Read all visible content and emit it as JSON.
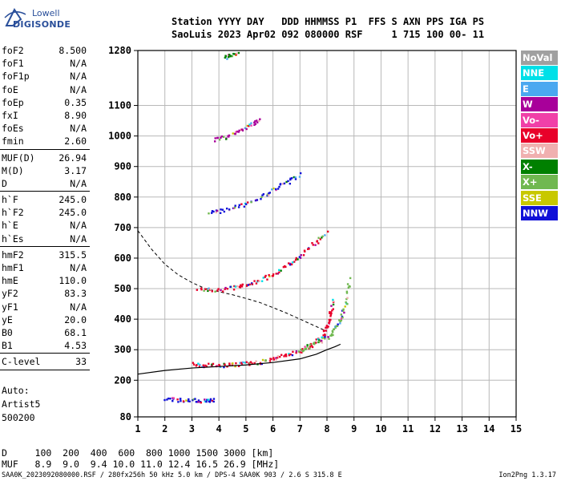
{
  "logo": {
    "line1": "Lowell",
    "line2": "DIGISONDE"
  },
  "header": {
    "line1": "Station YYYY DAY   DDD HHMMSS P1  FFS S AXN PPS IGA PS",
    "line2": "SaoLuis 2023 Apr02 092 080000 RSF     1 715 100 00- 11"
  },
  "params": [
    {
      "label": "foF2",
      "value": "8.500"
    },
    {
      "label": "foF1",
      "value": "N/A"
    },
    {
      "label": "foF1p",
      "value": "N/A"
    },
    {
      "label": "foE",
      "value": "N/A"
    },
    {
      "label": "foEp",
      "value": "0.35"
    },
    {
      "label": "fxI",
      "value": "8.90"
    },
    {
      "label": "foEs",
      "value": "N/A"
    },
    {
      "label": "fmin",
      "value": "2.60"
    },
    {
      "sep": true
    },
    {
      "label": "MUF(D)",
      "value": "26.94"
    },
    {
      "label": "M(D)",
      "value": "3.17"
    },
    {
      "label": "D",
      "value": "N/A"
    },
    {
      "sep": true
    },
    {
      "label": "h`F",
      "value": "245.0"
    },
    {
      "label": "h`F2",
      "value": "245.0"
    },
    {
      "label": "h`E",
      "value": "N/A"
    },
    {
      "label": "h`Es",
      "value": "N/A"
    },
    {
      "sep": true
    },
    {
      "label": "hmF2",
      "value": "315.5"
    },
    {
      "label": "hmF1",
      "value": "N/A"
    },
    {
      "label": "hmE",
      "value": "110.0"
    },
    {
      "label": "yF2",
      "value": "83.3"
    },
    {
      "label": "yF1",
      "value": "N/A"
    },
    {
      "label": "yE",
      "value": "20.0"
    },
    {
      "label": "B0",
      "value": "68.1"
    },
    {
      "label": "B1",
      "value": "4.53"
    },
    {
      "sep": true
    },
    {
      "label": "C-level",
      "value": "33"
    },
    {
      "sep": true
    }
  ],
  "auto": {
    "line1": "Auto:",
    "line2": "Artist5",
    "line3": "500200"
  },
  "muf_table": {
    "line1": "D     100  200  400  600  800 1000 1500 3000 [km]",
    "line2": "MUF   8.9  9.0  9.4 10.0 11.0 12.4 16.5 26.9 [MHz]"
  },
  "footer": {
    "left": "SAA0K_2023092080000.RSF / 280fx256h 50 kHz 5.0 km / DPS-4 SAA0K 903 / 2.6 S 315.8 E",
    "right": "Ion2Png 1.3.17"
  },
  "legend": [
    {
      "label": "NoVal",
      "color": "#a0a0a0"
    },
    {
      "label": "NNE",
      "color": "#00e0e8"
    },
    {
      "label": "E",
      "color": "#4aa8f0"
    },
    {
      "label": "W",
      "color": "#a8009a"
    },
    {
      "label": "Vo-",
      "color": "#f040a8"
    },
    {
      "label": "Vo+",
      "color": "#e8002a"
    },
    {
      "label": "SSW",
      "color": "#f0b0b0"
    },
    {
      "label": "X-",
      "color": "#008000"
    },
    {
      "label": "X+",
      "color": "#70b850"
    },
    {
      "label": "SSE",
      "color": "#c8c800"
    },
    {
      "label": "NNW",
      "color": "#1010d8"
    }
  ],
  "chart_data": {
    "type": "scatter",
    "xlim": [
      1,
      15
    ],
    "ylim": [
      80,
      1280
    ],
    "x_ticks": [
      1,
      2,
      3,
      4,
      5,
      6,
      7,
      8,
      9,
      10,
      11,
      12,
      13,
      14,
      15
    ],
    "y_ticks": [
      80,
      200,
      300,
      400,
      500,
      600,
      700,
      800,
      900,
      1000,
      1100,
      1280
    ],
    "grid": true,
    "traces": [
      {
        "name": "o-trace F2",
        "color": "#e8002a",
        "points": [
          [
            3.0,
            255
          ],
          [
            3.5,
            252
          ],
          [
            4.0,
            250
          ],
          [
            4.5,
            252
          ],
          [
            5.0,
            256
          ],
          [
            5.5,
            262
          ],
          [
            6.0,
            272
          ],
          [
            6.5,
            285
          ],
          [
            7.0,
            300
          ],
          [
            7.5,
            320
          ],
          [
            7.8,
            345
          ],
          [
            8.0,
            380
          ],
          [
            8.1,
            420
          ],
          [
            8.2,
            470
          ]
        ]
      },
      {
        "name": "x-trace F2",
        "color": "#70b850",
        "points": [
          [
            7.0,
            300
          ],
          [
            7.5,
            320
          ],
          [
            8.0,
            345
          ],
          [
            8.3,
            370
          ],
          [
            8.5,
            410
          ],
          [
            8.7,
            460
          ],
          [
            8.8,
            540
          ]
        ]
      },
      {
        "name": "second hop",
        "color": "#e8002a",
        "points": [
          [
            3.2,
            500
          ],
          [
            3.8,
            496
          ],
          [
            4.5,
            505
          ],
          [
            5.0,
            515
          ],
          [
            5.5,
            530
          ],
          [
            6.0,
            550
          ],
          [
            6.5,
            580
          ],
          [
            7.0,
            610
          ],
          [
            7.5,
            650
          ],
          [
            8.0,
            690
          ]
        ]
      },
      {
        "name": "third hop",
        "color": "#1010d8",
        "points": [
          [
            3.6,
            750
          ],
          [
            4.2,
            760
          ],
          [
            4.8,
            775
          ],
          [
            5.5,
            800
          ],
          [
            6.0,
            825
          ],
          [
            6.5,
            850
          ],
          [
            7.0,
            880
          ]
        ]
      },
      {
        "name": "fourth hop",
        "color": "#a8009a",
        "points": [
          [
            3.8,
            990
          ],
          [
            4.3,
            1000
          ],
          [
            4.8,
            1020
          ],
          [
            5.2,
            1040
          ],
          [
            5.5,
            1060
          ]
        ]
      },
      {
        "name": "top echoes",
        "color": "#008000",
        "points": [
          [
            4.2,
            1260
          ],
          [
            4.4,
            1265
          ],
          [
            4.7,
            1270
          ]
        ]
      },
      {
        "name": "low echoes",
        "color": "#1010d8",
        "points": [
          [
            2.0,
            140
          ],
          [
            2.5,
            138
          ],
          [
            3.0,
            136
          ],
          [
            3.5,
            135
          ],
          [
            3.8,
            136
          ]
        ]
      }
    ],
    "profile_curve": [
      [
        1.0,
        220
      ],
      [
        2.0,
        232
      ],
      [
        3.0,
        240
      ],
      [
        4.0,
        245
      ],
      [
        5.0,
        250
      ],
      [
        6.0,
        258
      ],
      [
        7.0,
        270
      ],
      [
        7.6,
        285
      ],
      [
        8.0,
        300
      ],
      [
        8.3,
        310
      ],
      [
        8.5,
        318
      ]
    ],
    "dashed_curve": [
      [
        1.0,
        690
      ],
      [
        1.5,
        630
      ],
      [
        2.0,
        580
      ],
      [
        2.5,
        545
      ],
      [
        3.0,
        520
      ],
      [
        3.5,
        500
      ],
      [
        4.0,
        490
      ],
      [
        4.5,
        480
      ],
      [
        5.0,
        468
      ],
      [
        5.5,
        455
      ],
      [
        6.0,
        438
      ],
      [
        6.5,
        420
      ],
      [
        7.0,
        400
      ],
      [
        7.5,
        380
      ],
      [
        8.0,
        360
      ]
    ]
  }
}
